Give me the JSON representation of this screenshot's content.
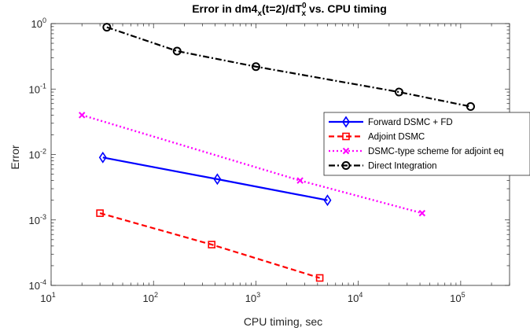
{
  "chart_data": {
    "type": "line",
    "title": {
      "prefix": "Error in dm4",
      "sub1": "x",
      "middle": "(t=2)/dT",
      "sup2": "0",
      "sub2": "x",
      "suffix": " vs. CPU timing"
    },
    "xlabel": "CPU timing, sec",
    "ylabel": "Error",
    "xscale": "log",
    "yscale": "log",
    "xlim": [
      10,
      300000
    ],
    "ylim": [
      0.0001,
      1
    ],
    "xticks": [
      {
        "base": "10",
        "exp": "1"
      },
      {
        "base": "10",
        "exp": "2"
      },
      {
        "base": "10",
        "exp": "3"
      },
      {
        "base": "10",
        "exp": "4"
      },
      {
        "base": "10",
        "exp": "5"
      }
    ],
    "yticks": [
      {
        "base": "10",
        "exp": "-4"
      },
      {
        "base": "10",
        "exp": "-3"
      },
      {
        "base": "10",
        "exp": "-2"
      },
      {
        "base": "10",
        "exp": "-1"
      },
      {
        "base": "10",
        "exp": "0"
      }
    ],
    "grid": false,
    "legend_position": "right",
    "series": [
      {
        "name": "Forward DSMC + FD",
        "color": "#0000ff",
        "dash": "solid",
        "marker": "diamond",
        "x": [
          32,
          420,
          5000
        ],
        "y": [
          0.009,
          0.0042,
          0.002
        ]
      },
      {
        "name": "Adjoint DSMC",
        "color": "#ff0000",
        "dash": "dashed",
        "marker": "square",
        "x": [
          30,
          370,
          4200
        ],
        "y": [
          0.00127,
          0.00042,
          0.00013
        ]
      },
      {
        "name": "DSMC-type scheme  for adjoint eq",
        "color": "#ff00ff",
        "dash": "dotted",
        "marker": "x",
        "x": [
          20,
          2700,
          42000
        ],
        "y": [
          0.04,
          0.004,
          0.00127
        ]
      },
      {
        "name": "Direct Integration",
        "color": "#000000",
        "dash": "dashdot",
        "marker": "circle",
        "x": [
          35,
          170,
          1000,
          25000,
          125000
        ],
        "y": [
          0.88,
          0.38,
          0.22,
          0.09,
          0.054
        ]
      }
    ]
  }
}
